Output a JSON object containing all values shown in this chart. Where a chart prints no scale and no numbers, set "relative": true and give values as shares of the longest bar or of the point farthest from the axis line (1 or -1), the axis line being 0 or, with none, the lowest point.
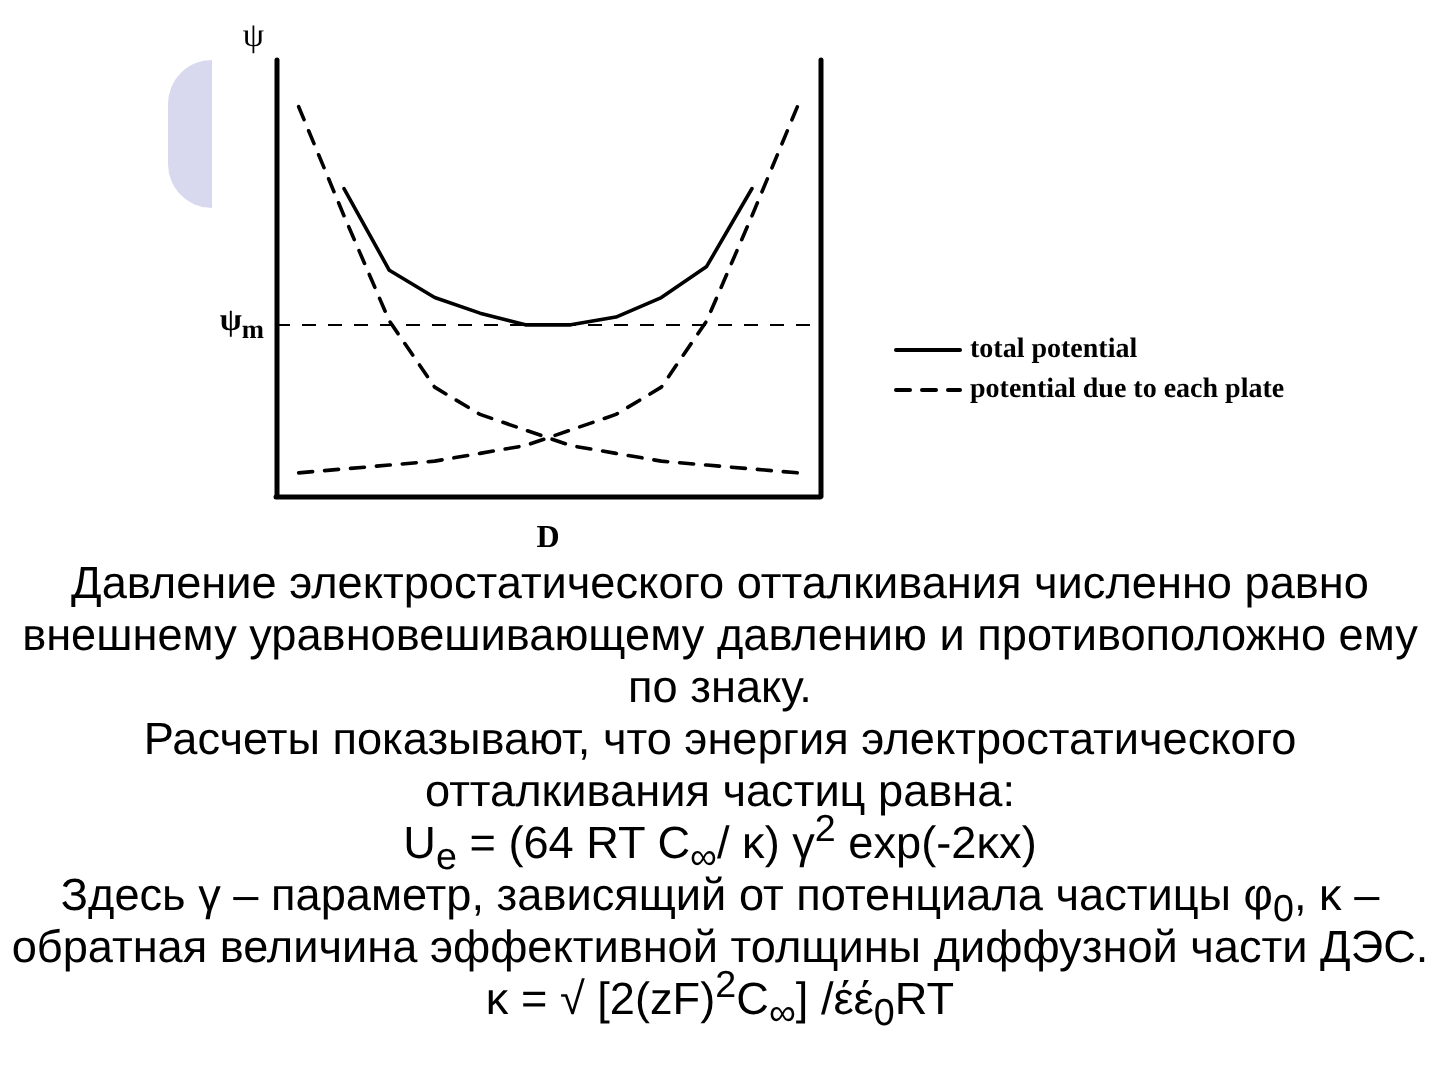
{
  "chart_data": {
    "type": "line",
    "relative": true,
    "ylabel": "ψ",
    "xlabel": "D",
    "categories": [
      null,
      null,
      null,
      null,
      null,
      null,
      null,
      null,
      null,
      null,
      null,
      null
    ],
    "series": [
      {
        "name": "total potential",
        "color": "#000000",
        "line_style": "solid",
        "values": [
          null,
          0.79,
          0.58,
          0.51,
          0.47,
          0.44,
          0.44,
          0.46,
          0.51,
          0.59,
          0.79,
          null
        ]
      },
      {
        "name": "potential due to each plate",
        "color": "#000000",
        "line_style": "dashed",
        "values": [
          1,
          0.72,
          0.45,
          0.28,
          0.21,
          0.17,
          0.13,
          0.11,
          0.09,
          0.08,
          0.07,
          0.06
        ]
      },
      {
        "color": "#000000",
        "line_style": "dashed",
        "values": [
          0.06,
          0.07,
          0.08,
          0.09,
          0.11,
          0.13,
          0.17,
          0.21,
          0.28,
          0.45,
          0.72,
          1
        ]
      }
    ],
    "ref_lines": [
      {
        "axis": "y",
        "value": 0.44,
        "label": "ψ$_{m}$",
        "line_style": "dashed",
        "color": "#000000"
      }
    ],
    "legend": "right",
    "grid": false,
    "marker": "none",
    "annotations": [
      "Давление электростатического отталкивания численно равно внешнему уравновешивающему давлению и противоположно ему по знаку.",
      "Расчеты показывают, что энергия электростатического отталкивания частиц равна:",
      "U$_{e}$ = (64 RT C$_{∞}$/ κ) γ$^{2}$ exp(-2κx)",
      "Здесь γ – параметр, зависящий от потенциала частицы φ$_{0}$, κ – обратная величина эффективной толщины диффузной части ДЭС.     κ = √ [2(zF)$^{2}$C$_{∞}$] /έέ$_{0}$RT"
    ]
  }
}
